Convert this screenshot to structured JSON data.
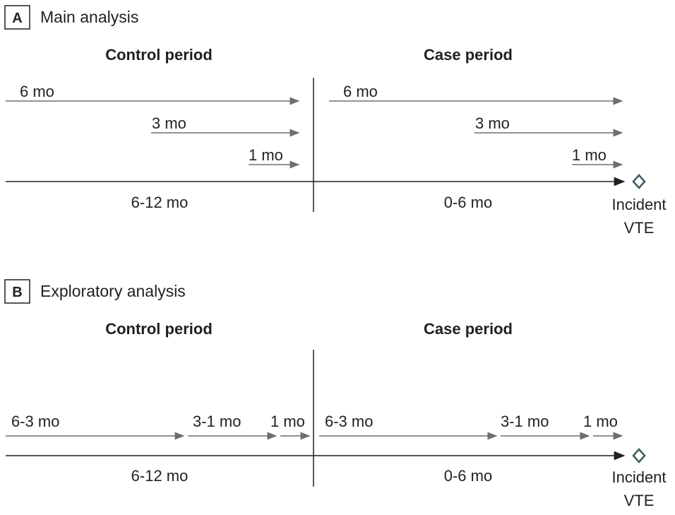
{
  "panels": [
    {
      "letter": "A",
      "title": "Main analysis",
      "control_header": "Control period",
      "case_header": "Case period",
      "control_arrows": [
        "6 mo",
        "3 mo",
        "1 mo"
      ],
      "case_arrows": [
        "6 mo",
        "3 mo",
        "1 mo"
      ],
      "control_range": "6-12 mo",
      "case_range": "0-6 mo",
      "event_line1": "Incident",
      "event_line2": "VTE"
    },
    {
      "letter": "B",
      "title": "Exploratory analysis",
      "control_header": "Control period",
      "case_header": "Case period",
      "control_arrows": [
        "6-3 mo",
        "3-1 mo",
        "1 mo"
      ],
      "case_arrows": [
        "6-3 mo",
        "3-1 mo",
        "1 mo"
      ],
      "control_range": "6-12 mo",
      "case_range": "0-6 mo",
      "event_line1": "Incident",
      "event_line2": "VTE"
    }
  ],
  "colors": {
    "text": "#231f20",
    "arrow_gray": "#6d6e71",
    "timeline": "#231f20",
    "diamond": "#3a5a60"
  }
}
